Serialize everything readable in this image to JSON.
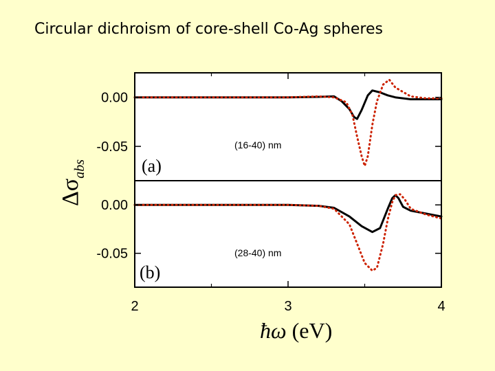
{
  "slide": {
    "title": "Circular dichroism of core-shell Co-Ag spheres"
  },
  "chart_data": {
    "type": "line",
    "xlabel_symbol": "ħω",
    "xlabel_unit": "(eV)",
    "ylabel_symbol": "Δσ",
    "ylabel_subscript": "abs",
    "xlim": [
      2,
      4
    ],
    "x_ticks": [
      "2",
      "3",
      "4"
    ],
    "panels": [
      {
        "tag": "(a)",
        "annotation": "(16-40) nm",
        "ylim": [
          -0.085,
          0.025
        ],
        "y_ticks": [
          {
            "value": 0.0,
            "label": "0.00"
          },
          {
            "value": -0.05,
            "label": "-0.05"
          }
        ],
        "series": [
          {
            "style": "solid",
            "color": "#000000",
            "x": [
              2.0,
              3.0,
              3.2,
              3.3,
              3.35,
              3.4,
              3.43,
              3.45,
              3.48,
              3.52,
              3.55,
              3.6,
              3.65,
              3.7,
              3.8,
              3.9,
              4.0
            ],
            "y": [
              0.0,
              0.0,
              0.0005,
              0.001,
              -0.004,
              -0.012,
              -0.02,
              -0.022,
              -0.013,
              0.002,
              0.007,
              0.005,
              0.002,
              0.0,
              -0.002,
              -0.002,
              -0.002
            ]
          },
          {
            "style": "dotted",
            "color": "#CC2200",
            "x": [
              2.0,
              3.0,
              3.2,
              3.3,
              3.38,
              3.42,
              3.45,
              3.48,
              3.5,
              3.52,
              3.55,
              3.58,
              3.62,
              3.66,
              3.7,
              3.8,
              3.9,
              4.0
            ],
            "y": [
              0.0,
              0.0,
              0.001,
              0.0,
              -0.005,
              -0.018,
              -0.04,
              -0.06,
              -0.07,
              -0.06,
              -0.028,
              -0.004,
              0.013,
              0.018,
              0.01,
              0.001,
              -0.001,
              -0.001
            ]
          }
        ]
      },
      {
        "tag": "(b)",
        "annotation": "(28-40) nm",
        "ylim": [
          -0.085,
          0.025
        ],
        "y_ticks": [
          {
            "value": 0.0,
            "label": "0.00"
          },
          {
            "value": -0.05,
            "label": "-0.05"
          }
        ],
        "series": [
          {
            "style": "solid",
            "color": "#000000",
            "x": [
              2.0,
              3.0,
              3.2,
              3.3,
              3.4,
              3.48,
              3.55,
              3.6,
              3.65,
              3.68,
              3.7,
              3.72,
              3.75,
              3.8,
              3.9,
              4.0
            ],
            "y": [
              0.0,
              0.0,
              -0.001,
              -0.003,
              -0.012,
              -0.022,
              -0.028,
              -0.024,
              -0.004,
              0.007,
              0.01,
              0.007,
              -0.002,
              -0.006,
              -0.009,
              -0.012
            ]
          },
          {
            "style": "dotted",
            "color": "#CC2200",
            "x": [
              2.0,
              3.0,
              3.2,
              3.3,
              3.4,
              3.45,
              3.5,
              3.55,
              3.58,
              3.62,
              3.65,
              3.68,
              3.7,
              3.73,
              3.76,
              3.8,
              3.9,
              4.0
            ],
            "y": [
              0.0,
              0.0,
              -0.001,
              -0.004,
              -0.02,
              -0.04,
              -0.06,
              -0.068,
              -0.065,
              -0.04,
              -0.015,
              0.003,
              0.01,
              0.011,
              0.006,
              -0.004,
              -0.01,
              -0.014
            ]
          }
        ]
      }
    ]
  }
}
